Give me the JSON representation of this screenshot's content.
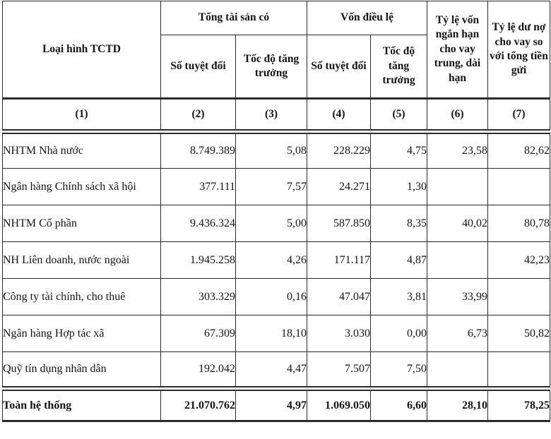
{
  "table": {
    "header": {
      "col_type": "Loại hình TCTD",
      "group_total_assets": "Tổng tài sản có",
      "group_charter_capital": "Vốn điều lệ",
      "sub_absolute_assets": "Số tuyệt đối",
      "sub_growth_assets": "Tốc độ tăng\ntrưởng",
      "sub_absolute_capital": "Số tuyệt đối",
      "sub_growth_capital": "Tốc độ\ntăng\ntrưởng",
      "col_short_term_ratio": "Tỷ lệ vốn\nngắn hạn\ncho vay\ntrung, dài\nhạn",
      "col_loan_deposit_ratio": "Tỷ lệ dư nợ\ncho vay so\nvới tổng tiền\ngửi"
    },
    "column_numbers": [
      "(1)",
      "(2)",
      "(3)",
      "(4)",
      "(5)",
      "(6)",
      "(7)"
    ],
    "rows": [
      {
        "label": "NHTM Nhà nước",
        "values": [
          "8.749.389",
          "5,08",
          "228.229",
          "4,75",
          "23,58",
          "82,62"
        ]
      },
      {
        "label": "Ngân hàng Chính sách xã hội",
        "values": [
          "377.111",
          "7,57",
          "24.271",
          "1,30",
          "",
          ""
        ]
      },
      {
        "label": "NHTM Cổ phần",
        "values": [
          "9.436.324",
          "5,00",
          "587.850",
          "8,35",
          "40,02",
          "80,78"
        ]
      },
      {
        "label": "NH Liên doanh, nước ngoài",
        "values": [
          "1.945.258",
          "4,26",
          "171.117",
          "4,87",
          "",
          "42,23"
        ]
      },
      {
        "label": "Công ty tài chính, cho thuê",
        "values": [
          "303.329",
          "0,16",
          "47.047",
          "3,81",
          "33,99",
          ""
        ]
      },
      {
        "label": "Ngân hàng Hợp tác xã",
        "values": [
          "67.309",
          "18,10",
          "3.030",
          "0,00",
          "6,73",
          "50,82"
        ]
      },
      {
        "label": "Quỹ tín dụng nhân dân",
        "values": [
          "192.042",
          "4,47",
          "7.507",
          "7,50",
          "",
          ""
        ]
      }
    ],
    "total_row": {
      "label": "Toàn hệ thống",
      "values": [
        "21.070.762",
        "4,97",
        "1.069.050",
        "6,60",
        "28,10",
        "78,25"
      ]
    }
  },
  "colors": {
    "border": "#2b2b2b",
    "text": "#141414",
    "background": "#ffffff"
  }
}
